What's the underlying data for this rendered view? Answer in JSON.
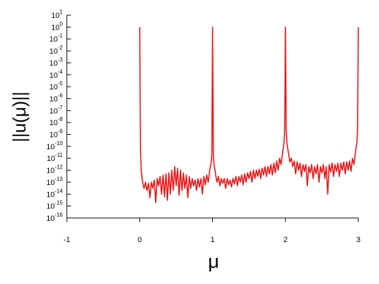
{
  "chart_data": {
    "type": "line",
    "y_label": "||u(μ)||",
    "x_label": "μ",
    "log_y": true,
    "xlim": [
      -1,
      3
    ],
    "xticks": [
      -1,
      0,
      1,
      2,
      3
    ],
    "ylim": [
      1e-16,
      10
    ],
    "yticks": [
      {
        "value": 10,
        "label": "10",
        "exponent": "1"
      },
      {
        "value": 1,
        "label": "10",
        "exponent": "0"
      },
      {
        "value": 0.1,
        "label": "10",
        "exponent": "-1"
      },
      {
        "value": 0.01,
        "label": "10",
        "exponent": "-2"
      },
      {
        "value": 0.001,
        "label": "10",
        "exponent": "-3"
      },
      {
        "value": 0.0001,
        "label": "10",
        "exponent": "-4"
      },
      {
        "value": 1e-05,
        "label": "10",
        "exponent": "-5"
      },
      {
        "value": 1e-06,
        "label": "10",
        "exponent": "-6"
      },
      {
        "value": 1e-07,
        "label": "10",
        "exponent": "-7"
      },
      {
        "value": 1e-08,
        "label": "10",
        "exponent": "-8"
      },
      {
        "value": 1e-09,
        "label": "10",
        "exponent": "-9"
      },
      {
        "value": 1e-10,
        "label": "10",
        "exponent": "-10"
      },
      {
        "value": 1e-11,
        "label": "10",
        "exponent": "-11"
      },
      {
        "value": 1e-12,
        "label": "10",
        "exponent": "-12"
      },
      {
        "value": 1e-13,
        "label": "10",
        "exponent": "-13"
      },
      {
        "value": 1e-14,
        "label": "10",
        "exponent": "-14"
      },
      {
        "value": 1e-15,
        "label": "10",
        "exponent": "-15"
      },
      {
        "value": 1e-16,
        "label": "10",
        "exponent": "-16"
      }
    ],
    "x": [
      0,
      0.01,
      0.02,
      0.04,
      0.06,
      0.08,
      0.1,
      0.12,
      0.14,
      0.16,
      0.18,
      0.2,
      0.22,
      0.24,
      0.26,
      0.28,
      0.3,
      0.32,
      0.34,
      0.36,
      0.38,
      0.4,
      0.42,
      0.44,
      0.46,
      0.48,
      0.5,
      0.52,
      0.54,
      0.56,
      0.58,
      0.6,
      0.62,
      0.64,
      0.66,
      0.68,
      0.7,
      0.72,
      0.74,
      0.76,
      0.78,
      0.8,
      0.82,
      0.84,
      0.86,
      0.88,
      0.9,
      0.92,
      0.94,
      0.96,
      0.98,
      0.99,
      1,
      1.01,
      1.02,
      1.04,
      1.06,
      1.08,
      1.1,
      1.12,
      1.14,
      1.16,
      1.18,
      1.2,
      1.22,
      1.24,
      1.26,
      1.28,
      1.3,
      1.32,
      1.34,
      1.36,
      1.38,
      1.4,
      1.42,
      1.44,
      1.46,
      1.48,
      1.5,
      1.52,
      1.54,
      1.56,
      1.58,
      1.6,
      1.62,
      1.64,
      1.66,
      1.68,
      1.7,
      1.72,
      1.74,
      1.76,
      1.78,
      1.8,
      1.82,
      1.84,
      1.86,
      1.88,
      1.9,
      1.92,
      1.94,
      1.96,
      1.98,
      1.99,
      2,
      2.01,
      2.02,
      2.04,
      2.06,
      2.08,
      2.1,
      2.12,
      2.14,
      2.16,
      2.18,
      2.2,
      2.22,
      2.24,
      2.26,
      2.28,
      2.3,
      2.32,
      2.34,
      2.36,
      2.38,
      2.4,
      2.42,
      2.44,
      2.46,
      2.48,
      2.5,
      2.52,
      2.54,
      2.56,
      2.58,
      2.6,
      2.62,
      2.64,
      2.66,
      2.68,
      2.7,
      2.72,
      2.74,
      2.76,
      2.78,
      2.8,
      2.82,
      2.84,
      2.86,
      2.88,
      2.9,
      2.92,
      2.94,
      2.96,
      2.98,
      2.99,
      3
    ],
    "series": [
      {
        "color": "#ee1111",
        "values": [
          1,
          1e-10,
          1e-12,
          1e-13,
          3e-14,
          1e-13,
          2e-14,
          8e-14,
          5e-15,
          1e-13,
          3e-14,
          1.5e-13,
          2e-15,
          2e-13,
          5e-14,
          3e-13,
          1e-14,
          4e-13,
          6e-15,
          5e-13,
          3e-15,
          6e-13,
          1e-14,
          1e-12,
          2e-14,
          2e-12,
          5e-14,
          1.5e-12,
          8e-15,
          1e-12,
          2e-14,
          6e-13,
          3e-14,
          4e-13,
          5e-15,
          3e-13,
          3e-14,
          2e-13,
          5e-14,
          1.5e-13,
          2e-14,
          2e-13,
          4e-14,
          2e-13,
          1e-14,
          3e-13,
          6e-14,
          4e-13,
          1e-13,
          1e-12,
          4e-12,
          2e-11,
          1,
          2e-11,
          3e-12,
          5e-13,
          1e-13,
          3e-13,
          5e-14,
          2e-13,
          8e-14,
          2e-13,
          3e-14,
          2e-13,
          6e-14,
          1.5e-13,
          4e-14,
          2e-13,
          7e-14,
          3e-13,
          5e-14,
          3e-13,
          1e-13,
          4e-13,
          6e-14,
          5e-13,
          1e-13,
          6e-13,
          2e-13,
          8e-13,
          1e-13,
          1e-12,
          2e-13,
          1e-12,
          3e-13,
          1.2e-12,
          2e-13,
          1.5e-12,
          4e-13,
          2e-12,
          3e-13,
          2e-12,
          5e-13,
          3e-12,
          4e-13,
          4e-12,
          6e-13,
          6e-12,
          1e-12,
          1e-11,
          3e-12,
          3e-11,
          2e-10,
          3e-09,
          1,
          3e-09,
          2e-10,
          3e-11,
          5e-12,
          1e-11,
          2e-12,
          6e-12,
          5e-13,
          5e-12,
          1e-12,
          4e-12,
          3e-13,
          3e-12,
          8e-13,
          3e-12,
          5e-14,
          2e-12,
          6e-13,
          3e-12,
          2e-13,
          2e-12,
          5e-13,
          3e-12,
          1e-13,
          2e-12,
          6e-13,
          3e-12,
          2e-13,
          2e-12,
          1e-14,
          3e-12,
          7e-13,
          4e-12,
          3e-13,
          3e-12,
          8e-13,
          4e-12,
          3e-13,
          4e-12,
          1e-12,
          5e-12,
          5e-13,
          5e-12,
          1e-12,
          6e-12,
          8e-13,
          1e-11,
          3e-12,
          3e-11,
          2e-10,
          3e-09,
          1
        ]
      }
    ]
  }
}
